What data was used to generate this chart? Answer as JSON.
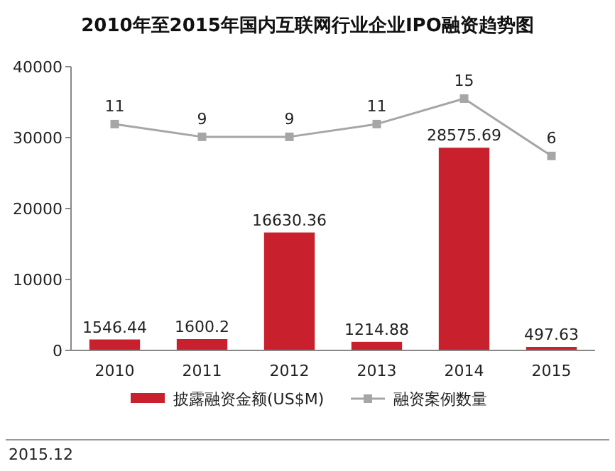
{
  "chart_data": {
    "type": "bar",
    "title": "2010年至2015年国内互联网行业企业IPO融资趋势图",
    "categories": [
      "2010",
      "2011",
      "2012",
      "2013",
      "2014",
      "2015"
    ],
    "series": [
      {
        "name": "披露融资金额(US$M)",
        "color": "#c8202c",
        "values": [
          1546.44,
          1600.2,
          16630.36,
          1214.88,
          28575.69,
          497.63
        ]
      },
      {
        "name": "融资案例数量",
        "type": "line",
        "axis": "y2",
        "color": "#a6a6a6",
        "values": [
          11,
          9,
          9,
          11,
          15,
          6
        ]
      }
    ],
    "ylim": [
      0,
      40000
    ],
    "yticks": [
      0,
      10000,
      20000,
      30000,
      40000
    ],
    "y2lim": [
      -24.5,
      20
    ],
    "data_labels": true,
    "grid": false,
    "legend": "bottom",
    "marker": "square",
    "line_style": "solid",
    "annotations": [
      "2015.12"
    ]
  }
}
